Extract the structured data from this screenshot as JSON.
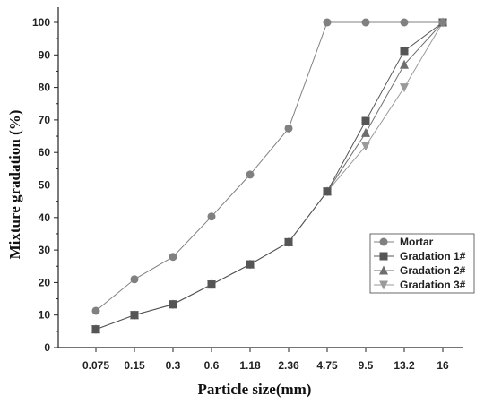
{
  "chart_data": {
    "type": "line",
    "xlabel": "Particle size(mm)",
    "ylabel": "Mixture gradation (%)",
    "categories": [
      "0.075",
      "0.15",
      "0.3",
      "0.6",
      "1.18",
      "2.36",
      "4.75",
      "9.5",
      "13.2",
      "16"
    ],
    "ylim": [
      0,
      100
    ],
    "yticks": [
      0,
      10,
      20,
      30,
      40,
      50,
      60,
      70,
      80,
      90,
      100
    ],
    "grid": false,
    "legend_position": "bottom-right",
    "series": [
      {
        "name": "Mortar",
        "marker": "circle",
        "color": "#808080",
        "values": [
          11.3,
          21,
          27.9,
          40.3,
          53.2,
          67.4,
          100,
          100,
          100,
          100
        ]
      },
      {
        "name": "Gradation 1#",
        "marker": "square",
        "color": "#555555",
        "values": [
          5.6,
          10,
          13.3,
          19.4,
          25.6,
          32.4,
          48,
          69.7,
          91.2,
          100
        ]
      },
      {
        "name": "Gradation 2#",
        "marker": "triangle-up",
        "color": "#6e6e6e",
        "values": [
          5.6,
          10,
          13.3,
          19.4,
          25.6,
          32.4,
          48,
          66,
          87,
          100
        ]
      },
      {
        "name": "Gradation 3#",
        "marker": "triangle-down",
        "color": "#9a9a9a",
        "values": [
          5.6,
          10,
          13.3,
          19.4,
          25.6,
          32.4,
          48,
          62,
          80,
          100
        ]
      }
    ]
  }
}
